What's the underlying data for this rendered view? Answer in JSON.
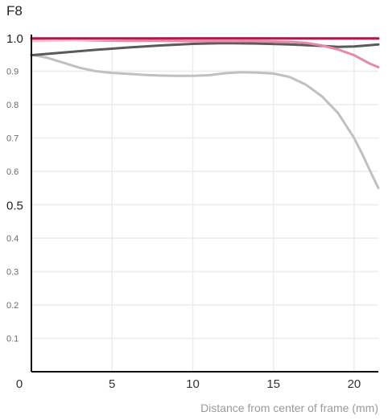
{
  "chart_data": {
    "type": "line",
    "title": "F8",
    "xlabel": "Distance from center of frame (mm)",
    "ylabel": "",
    "xlim": [
      0,
      21.5
    ],
    "ylim": [
      0,
      1.0
    ],
    "x_ticks": [
      {
        "value": 0,
        "label": "0"
      },
      {
        "value": 5,
        "label": "5"
      },
      {
        "value": 10,
        "label": "10"
      },
      {
        "value": 15,
        "label": "15"
      },
      {
        "value": 20,
        "label": "20"
      }
    ],
    "y_ticks": [
      {
        "value": 0.1,
        "label": "0.1",
        "major": false
      },
      {
        "value": 0.2,
        "label": "0.2",
        "major": false
      },
      {
        "value": 0.3,
        "label": "0.3",
        "major": false
      },
      {
        "value": 0.4,
        "label": "0.4",
        "major": false
      },
      {
        "value": 0.5,
        "label": "0.5",
        "major": true
      },
      {
        "value": 0.6,
        "label": "0.6",
        "major": false
      },
      {
        "value": 0.7,
        "label": "0.7",
        "major": false
      },
      {
        "value": 0.8,
        "label": "0.8",
        "major": false
      },
      {
        "value": 0.9,
        "label": "0.9",
        "major": false
      },
      {
        "value": 1.0,
        "label": "1.0",
        "major": true
      }
    ],
    "grid": true,
    "series": [
      {
        "color": "#c0c0c0",
        "width": 3,
        "points": [
          [
            0,
            0.95
          ],
          [
            1,
            0.94
          ],
          [
            2,
            0.925
          ],
          [
            3,
            0.91
          ],
          [
            4,
            0.9
          ],
          [
            5,
            0.895
          ],
          [
            6,
            0.892
          ],
          [
            7,
            0.889
          ],
          [
            8,
            0.887
          ],
          [
            9,
            0.886
          ],
          [
            10,
            0.886
          ],
          [
            11,
            0.888
          ],
          [
            12,
            0.894
          ],
          [
            13,
            0.897
          ],
          [
            14,
            0.896
          ],
          [
            15,
            0.893
          ],
          [
            16,
            0.883
          ],
          [
            17,
            0.86
          ],
          [
            18,
            0.825
          ],
          [
            19,
            0.775
          ],
          [
            20,
            0.7
          ],
          [
            20.5,
            0.652
          ],
          [
            21,
            0.6
          ],
          [
            21.5,
            0.55
          ]
        ]
      },
      {
        "color": "#5a5a5a",
        "width": 3,
        "points": [
          [
            0,
            0.948
          ],
          [
            2,
            0.956
          ],
          [
            4,
            0.964
          ],
          [
            6,
            0.971
          ],
          [
            8,
            0.977
          ],
          [
            10,
            0.982
          ],
          [
            12,
            0.984
          ],
          [
            14,
            0.983
          ],
          [
            16,
            0.98
          ],
          [
            18,
            0.976
          ],
          [
            19,
            0.973
          ],
          [
            20,
            0.974
          ],
          [
            21,
            0.978
          ],
          [
            21.5,
            0.98
          ]
        ]
      },
      {
        "color": "#e889a3",
        "width": 3,
        "points": [
          [
            0,
            0.997
          ],
          [
            2,
            0.994
          ],
          [
            4,
            0.992
          ],
          [
            6,
            0.991
          ],
          [
            8,
            0.991
          ],
          [
            10,
            0.99
          ],
          [
            12,
            0.99
          ],
          [
            14,
            0.99
          ],
          [
            16,
            0.988
          ],
          [
            17,
            0.985
          ],
          [
            18,
            0.977
          ],
          [
            19,
            0.965
          ],
          [
            20,
            0.948
          ],
          [
            20.5,
            0.935
          ],
          [
            21,
            0.922
          ],
          [
            21.5,
            0.912
          ]
        ]
      },
      {
        "color": "#f3c4cd",
        "width": 3,
        "points": [
          [
            0,
            0.99
          ],
          [
            2,
            0.992
          ],
          [
            4,
            0.995
          ],
          [
            6,
            0.997
          ],
          [
            8,
            0.998
          ],
          [
            10,
            0.999
          ],
          [
            12,
            0.999
          ],
          [
            14,
            0.999
          ],
          [
            16,
            0.998
          ],
          [
            18,
            0.997
          ],
          [
            20,
            0.997
          ],
          [
            21.5,
            0.997
          ]
        ]
      },
      {
        "color": "#b5154a",
        "width": 3,
        "points": [
          [
            0,
            0.998
          ],
          [
            5,
            0.998
          ],
          [
            10,
            0.998
          ],
          [
            15,
            0.998
          ],
          [
            20,
            0.998
          ],
          [
            21.5,
            0.998
          ]
        ]
      }
    ]
  }
}
